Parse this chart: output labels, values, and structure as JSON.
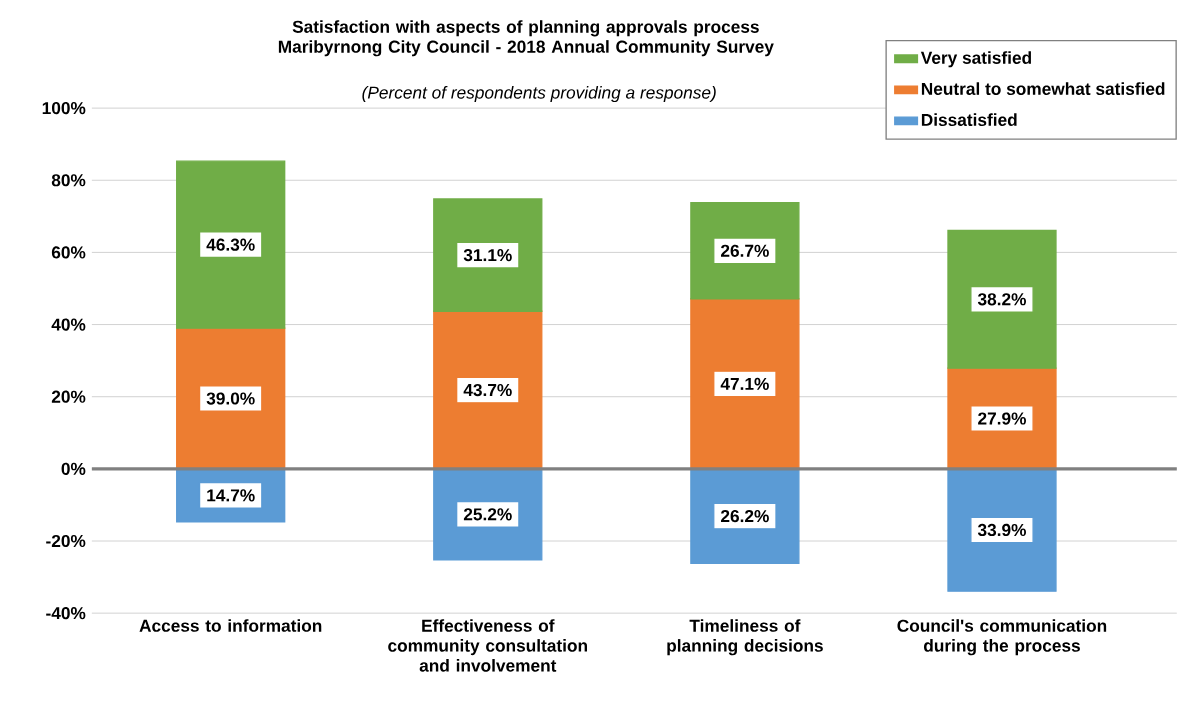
{
  "chart_data": {
    "type": "bar",
    "title": "Satisfaction with aspects of planning approvals process Maribyrnong City Council - 2018 Annual Community Survey",
    "subtitle": "(Percent of respondents providing a response)",
    "categories": [
      "Access to information",
      "Effectiveness of community consultation and involvement",
      "Timeliness of planning decisions",
      "Council's communication during the process"
    ],
    "stacked": true,
    "series": [
      {
        "name": "Dissatisfied",
        "color": "#5b9bd5",
        "values": [
          14.7,
          25.2,
          26.2,
          33.9
        ],
        "base": [
          -14.7,
          -25.2,
          -26.2,
          -33.9
        ],
        "value_labels": [
          "14.7%",
          "25.2%",
          "26.2%",
          "33.9%"
        ]
      },
      {
        "name": "Neutral to somewhat satisfied",
        "color": "#ed7d31",
        "values": [
          39.0,
          43.7,
          47.1,
          27.9
        ],
        "value_labels": [
          "39.0%",
          "43.7%",
          "47.1%",
          "27.9%"
        ]
      },
      {
        "name": "Very satisfied",
        "color": "#70ad47",
        "values": [
          46.3,
          31.1,
          26.7,
          38.2
        ],
        "value_labels": [
          "46.3%",
          "31.1%",
          "26.7%",
          "38.2%"
        ]
      }
    ],
    "ylim": [
      -40,
      100
    ],
    "yticks": [
      {
        "value": -40,
        "label": "-40%"
      },
      {
        "value": -20,
        "label": "-20%"
      },
      {
        "value": 0,
        "label": "0%"
      },
      {
        "value": 20,
        "label": "20%"
      },
      {
        "value": 40,
        "label": "40%"
      },
      {
        "value": 60,
        "label": "60%"
      },
      {
        "value": 80,
        "label": "80%"
      },
      {
        "value": 100,
        "label": "100%"
      }
    ],
    "grid": "y",
    "legend": "top right"
  }
}
